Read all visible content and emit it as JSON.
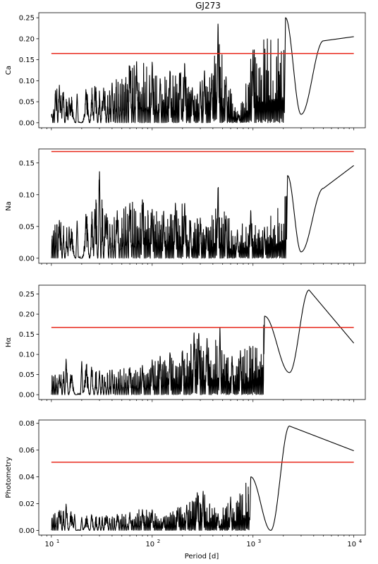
{
  "chart_data": {
    "type": "line",
    "title": "GJ273",
    "xlabel": "Period [d]",
    "xscale": "log",
    "xlim": [
      7.5,
      13000
    ],
    "x_tick_labels": [
      "10",
      "10",
      "10",
      "10"
    ],
    "x_tick_exponents": [
      "1",
      "2",
      "3",
      "4"
    ],
    "x_tick_values": [
      10,
      100,
      1000,
      10000
    ],
    "colors": {
      "periodogram": "#000000",
      "threshold": "#e8291c"
    },
    "grid": false,
    "legend": "none",
    "panels": [
      {
        "ylabel": "Ca",
        "ylim": [
          -0.012,
          0.262
        ],
        "y_ticks": [
          "0.00",
          "0.05",
          "0.10",
          "0.15",
          "0.20",
          "0.25"
        ],
        "y_tick_values": [
          0,
          0.05,
          0.1,
          0.15,
          0.2,
          0.25
        ],
        "threshold": 0.165,
        "peaks": [
          [
            10,
            0.02
          ],
          [
            11,
            0.08
          ],
          [
            12,
            0.09
          ],
          [
            13,
            0.075
          ],
          [
            15,
            0.06
          ],
          [
            18,
            0.07
          ],
          [
            22,
            0.08
          ],
          [
            27,
            0.09
          ],
          [
            33,
            0.085
          ],
          [
            40,
            0.1
          ],
          [
            60,
            0.14
          ],
          [
            70,
            0.15
          ],
          [
            100,
            0.15
          ],
          [
            120,
            0.11
          ],
          [
            150,
            0.13
          ],
          [
            190,
            0.12
          ],
          [
            210,
            0.145
          ],
          [
            250,
            0.085
          ],
          [
            300,
            0.1
          ],
          [
            330,
            0.13
          ],
          [
            390,
            0.12
          ],
          [
            450,
            0.245
          ],
          [
            540,
            0.115
          ],
          [
            720,
            0.02
          ],
          [
            1000,
            0.18
          ],
          [
            2100,
            0.25
          ]
        ],
        "tail": [
          [
            3000,
            0.02
          ],
          [
            5000,
            0.195
          ],
          [
            10000,
            0.205
          ]
        ]
      },
      {
        "ylabel": "Na",
        "ylim": [
          -0.008,
          0.172
        ],
        "y_ticks": [
          "0.00",
          "0.05",
          "0.10",
          "0.15"
        ],
        "y_tick_values": [
          0,
          0.05,
          0.1,
          0.15
        ],
        "threshold": 0.168,
        "peaks": [
          [
            12,
            0.06
          ],
          [
            15,
            0.05
          ],
          [
            18,
            0.06
          ],
          [
            22,
            0.07
          ],
          [
            27,
            0.08
          ],
          [
            30,
            0.138
          ],
          [
            35,
            0.07
          ],
          [
            45,
            0.075
          ],
          [
            60,
            0.09
          ],
          [
            80,
            0.095
          ],
          [
            100,
            0.08
          ],
          [
            130,
            0.075
          ],
          [
            170,
            0.09
          ],
          [
            210,
            0.09
          ],
          [
            240,
            0.06
          ],
          [
            300,
            0.065
          ],
          [
            350,
            0.05
          ],
          [
            450,
            0.115
          ],
          [
            540,
            0.07
          ],
          [
            700,
            0.045
          ],
          [
            950,
            0.078
          ],
          [
            1300,
            0.05
          ],
          [
            2200,
            0.13
          ]
        ],
        "tail": [
          [
            3000,
            0.01
          ],
          [
            5000,
            0.11
          ],
          [
            10000,
            0.146
          ]
        ]
      },
      {
        "ylabel": "Hα",
        "ylim": [
          -0.012,
          0.272
        ],
        "y_ticks": [
          "0.00",
          "0.05",
          "0.10",
          "0.15",
          "0.20",
          "0.25"
        ],
        "y_tick_values": [
          0,
          0.05,
          0.1,
          0.15,
          0.2,
          0.25
        ],
        "threshold": 0.167,
        "peaks": [
          [
            12,
            0.05
          ],
          [
            14,
            0.09
          ],
          [
            16,
            0.05
          ],
          [
            20,
            0.085
          ],
          [
            25,
            0.07
          ],
          [
            30,
            0.06
          ],
          [
            40,
            0.065
          ],
          [
            60,
            0.07
          ],
          [
            80,
            0.075
          ],
          [
            100,
            0.09
          ],
          [
            120,
            0.1
          ],
          [
            150,
            0.11
          ],
          [
            200,
            0.11
          ],
          [
            260,
            0.16
          ],
          [
            290,
            0.16
          ],
          [
            350,
            0.145
          ],
          [
            470,
            0.17
          ],
          [
            620,
            0.1
          ],
          [
            750,
            0.11
          ],
          [
            1300,
            0.195
          ]
        ],
        "tail": [
          [
            2300,
            0.055
          ],
          [
            3600,
            0.26
          ],
          [
            10000,
            0.128
          ]
        ]
      },
      {
        "ylabel": "Photometry",
        "ylim": [
          -0.0035,
          0.0825
        ],
        "y_ticks": [
          "0.00",
          "0.02",
          "0.04",
          "0.06",
          "0.08"
        ],
        "y_tick_values": [
          0,
          0.02,
          0.04,
          0.06,
          0.08
        ],
        "threshold": 0.051,
        "peaks": [
          [
            12,
            0.015
          ],
          [
            14,
            0.02
          ],
          [
            17,
            0.012
          ],
          [
            20,
            0.01
          ],
          [
            25,
            0.012
          ],
          [
            35,
            0.011
          ],
          [
            45,
            0.012
          ],
          [
            60,
            0.014
          ],
          [
            80,
            0.016
          ],
          [
            100,
            0.016
          ],
          [
            130,
            0.01
          ],
          [
            180,
            0.018
          ],
          [
            220,
            0.02
          ],
          [
            280,
            0.029
          ],
          [
            320,
            0.03
          ],
          [
            450,
            0.013
          ],
          [
            600,
            0.025
          ],
          [
            950,
            0.04
          ]
        ],
        "tail": [
          [
            1500,
            0.0
          ],
          [
            2300,
            0.078
          ],
          [
            10000,
            0.0595
          ]
        ]
      }
    ]
  }
}
